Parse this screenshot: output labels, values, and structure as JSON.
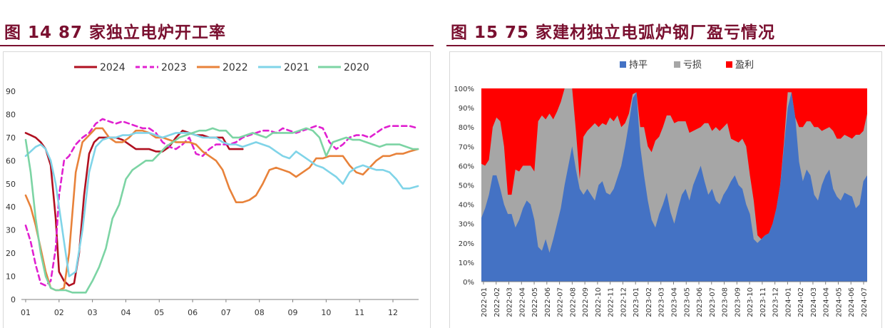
{
  "left": {
    "title": "图 14  87 家独立电炉开工率",
    "chart_data": {
      "type": "line",
      "title": "图 14  87 家独立电炉开工率",
      "x_ticks": [
        "01",
        "02",
        "03",
        "04",
        "05",
        "06",
        "07",
        "08",
        "09",
        "10",
        "11",
        "12"
      ],
      "ylim": [
        0,
        90
      ],
      "y_ticks": [
        "0",
        "10",
        "20",
        "30",
        "40",
        "50",
        "60",
        "70",
        "80",
        "90"
      ],
      "grid": false,
      "legend_position": "top",
      "series": [
        {
          "name": "2024",
          "color": "#b01020",
          "dash": false,
          "x": [
            1.0,
            1.15,
            1.3,
            1.45,
            1.6,
            1.75,
            1.9,
            2.0,
            2.15,
            2.3,
            2.45,
            2.6,
            2.75,
            2.9,
            3.05,
            3.2,
            3.35,
            3.5,
            3.7,
            3.9,
            4.1,
            4.3,
            4.5,
            4.7,
            4.9,
            5.1,
            5.3,
            5.5,
            5.7,
            5.9,
            6.1,
            6.3,
            6.5,
            6.7,
            6.9,
            7.1,
            7.3,
            7.5
          ],
          "y": [
            72,
            71,
            70,
            68,
            65,
            58,
            35,
            12,
            8,
            6,
            7,
            20,
            45,
            63,
            68,
            70,
            70,
            70,
            70,
            69,
            67,
            65,
            65,
            65,
            64,
            64,
            66,
            70,
            73,
            72,
            71,
            71,
            70,
            70,
            70,
            65,
            65,
            65
          ]
        },
        {
          "name": "2023",
          "color": "#e020d0",
          "dash": true,
          "x": [
            1.0,
            1.15,
            1.3,
            1.45,
            1.6,
            1.75,
            1.9,
            2.0,
            2.15,
            2.3,
            2.5,
            2.7,
            2.9,
            3.1,
            3.3,
            3.5,
            3.7,
            3.9,
            4.1,
            4.3,
            4.5,
            4.7,
            4.9,
            5.1,
            5.3,
            5.5,
            5.7,
            5.9,
            6.1,
            6.3,
            6.5,
            6.7,
            6.9,
            7.1,
            7.3,
            7.5,
            7.7,
            7.9,
            8.1,
            8.3,
            8.5,
            8.7,
            8.9,
            9.1,
            9.3,
            9.5,
            9.7,
            9.9,
            10.1,
            10.3,
            10.5,
            10.7,
            10.9,
            11.1,
            11.3,
            11.5,
            11.7,
            11.9,
            12.1,
            12.3,
            12.5,
            12.75
          ],
          "y": [
            32,
            25,
            15,
            7,
            6,
            8,
            22,
            45,
            60,
            62,
            67,
            70,
            72,
            76,
            78,
            77,
            76,
            77,
            76,
            75,
            74,
            74,
            72,
            68,
            66,
            65,
            67,
            70,
            63,
            62,
            65,
            67,
            67,
            67,
            68,
            70,
            71,
            72,
            73,
            73,
            72,
            74,
            73,
            72,
            73,
            74,
            75,
            74,
            68,
            65,
            67,
            70,
            71,
            71,
            70,
            72,
            74,
            75,
            75,
            75,
            75,
            74
          ]
        },
        {
          "name": "2022",
          "color": "#e8823a",
          "dash": false,
          "x": [
            1.0,
            1.15,
            1.3,
            1.45,
            1.6,
            1.75,
            1.9,
            2.0,
            2.15,
            2.3,
            2.5,
            2.7,
            2.9,
            3.1,
            3.3,
            3.5,
            3.7,
            3.9,
            4.1,
            4.3,
            4.5,
            4.7,
            4.9,
            5.1,
            5.3,
            5.5,
            5.7,
            5.9,
            6.1,
            6.3,
            6.5,
            6.7,
            6.9,
            7.1,
            7.3,
            7.5,
            7.7,
            7.9,
            8.1,
            8.3,
            8.5,
            8.7,
            8.9,
            9.1,
            9.3,
            9.5,
            9.7,
            9.9,
            10.1,
            10.3,
            10.5,
            10.7,
            10.9,
            11.1,
            11.3,
            11.5,
            11.7,
            11.9,
            12.1,
            12.3,
            12.5,
            12.75
          ],
          "y": [
            45,
            40,
            32,
            22,
            12,
            5,
            4,
            4,
            5,
            20,
            55,
            68,
            71,
            74,
            74,
            70,
            68,
            68,
            70,
            73,
            73,
            72,
            70,
            70,
            69,
            68,
            68,
            68,
            67,
            64,
            62,
            60,
            56,
            48,
            42,
            42,
            43,
            45,
            50,
            56,
            57,
            56,
            55,
            53,
            55,
            57,
            61,
            61,
            62,
            62,
            62,
            58,
            55,
            54,
            57,
            60,
            62,
            62,
            63,
            63,
            64,
            65
          ]
        },
        {
          "name": "2021",
          "color": "#80d4e8",
          "dash": false,
          "x": [
            1.0,
            1.15,
            1.3,
            1.45,
            1.6,
            1.75,
            1.9,
            2.0,
            2.15,
            2.3,
            2.5,
            2.7,
            2.9,
            3.1,
            3.3,
            3.5,
            3.7,
            3.9,
            4.1,
            4.3,
            4.5,
            4.7,
            4.9,
            5.1,
            5.3,
            5.5,
            5.7,
            5.9,
            6.1,
            6.3,
            6.5,
            6.7,
            6.9,
            7.1,
            7.3,
            7.5,
            7.7,
            7.9,
            8.1,
            8.3,
            8.5,
            8.7,
            8.9,
            9.1,
            9.3,
            9.5,
            9.7,
            9.9,
            10.1,
            10.3,
            10.5,
            10.7,
            10.9,
            11.1,
            11.3,
            11.5,
            11.7,
            11.9,
            12.1,
            12.3,
            12.5,
            12.75
          ],
          "y": [
            62,
            64,
            66,
            67,
            65,
            60,
            50,
            40,
            25,
            10,
            12,
            30,
            55,
            66,
            69,
            70,
            70,
            71,
            71,
            72,
            72,
            72,
            71,
            70,
            71,
            72,
            72,
            72,
            71,
            70,
            70,
            70,
            68,
            67,
            67,
            66,
            67,
            68,
            67,
            66,
            64,
            62,
            61,
            64,
            62,
            60,
            58,
            57,
            55,
            53,
            50,
            55,
            57,
            58,
            57,
            56,
            56,
            55,
            52,
            48,
            48,
            49
          ]
        },
        {
          "name": "2020",
          "color": "#7cd4a4",
          "dash": false,
          "x": [
            1.0,
            1.15,
            1.3,
            1.45,
            1.6,
            1.75,
            1.9,
            2.0,
            2.2,
            2.4,
            2.6,
            2.8,
            3.0,
            3.2,
            3.4,
            3.6,
            3.8,
            4.0,
            4.2,
            4.4,
            4.6,
            4.8,
            5.0,
            5.2,
            5.4,
            5.6,
            5.8,
            6.0,
            6.2,
            6.4,
            6.6,
            6.8,
            7.0,
            7.2,
            7.4,
            7.6,
            7.8,
            8.0,
            8.2,
            8.4,
            8.6,
            8.8,
            9.0,
            9.2,
            9.4,
            9.6,
            9.8,
            10.0,
            10.2,
            10.4,
            10.6,
            10.8,
            11.0,
            11.2,
            11.4,
            11.6,
            11.8,
            12.0,
            12.2,
            12.4,
            12.6,
            12.75
          ],
          "y": [
            69,
            55,
            35,
            20,
            10,
            5,
            4,
            4,
            4,
            3,
            3,
            3,
            8,
            14,
            22,
            35,
            41,
            52,
            56,
            58,
            60,
            60,
            63,
            66,
            68,
            70,
            71,
            72,
            73,
            73,
            74,
            73,
            73,
            70,
            70,
            71,
            72,
            71,
            70,
            72,
            72,
            72,
            72,
            73,
            74,
            73,
            70,
            62,
            68,
            69,
            70,
            69,
            69,
            68,
            67,
            66,
            67,
            67,
            67,
            66,
            65,
            65
          ]
        }
      ]
    }
  },
  "right": {
    "title": "图 15  75 家建材独立电弧炉钢厂盈亏情况",
    "chart_data": {
      "type": "area",
      "title": "图 15  75 家建材独立电弧炉钢厂盈亏情况",
      "stacked": true,
      "ylim": [
        0,
        100
      ],
      "y_ticks": [
        "0%",
        "10%",
        "20%",
        "30%",
        "40%",
        "50%",
        "60%",
        "70%",
        "80%",
        "90%",
        "100%"
      ],
      "x_ticks": [
        "2022-01",
        "2022-02",
        "2022-03",
        "2022-04",
        "2022-05",
        "2022-06",
        "2022-07",
        "2022-08",
        "2022-09",
        "2022-10",
        "2022-11",
        "2022-12",
        "2023-01",
        "2023-02",
        "2023-03",
        "2023-04",
        "2023-05",
        "2023-06",
        "2023-07",
        "2023-08",
        "2023-09",
        "2023-10",
        "2023-11",
        "2023-12",
        "2024-01",
        "2024-02",
        "2024-03",
        "2024-04",
        "2024-05",
        "2024-06",
        "2024-07"
      ],
      "grid": false,
      "legend_position": "top",
      "series": [
        {
          "name": "持平",
          "color": "#4472c4",
          "values": [
            33,
            38,
            45,
            55,
            55,
            48,
            40,
            35,
            35,
            28,
            32,
            38,
            42,
            40,
            32,
            18,
            16,
            22,
            15,
            22,
            30,
            38,
            50,
            60,
            70,
            58,
            48,
            45,
            48,
            45,
            42,
            50,
            52,
            46,
            45,
            48,
            54,
            60,
            70,
            82,
            95,
            98,
            70,
            55,
            42,
            32,
            28,
            35,
            40,
            46,
            36,
            30,
            38,
            45,
            48,
            42,
            50,
            55,
            60,
            52,
            45,
            48,
            42,
            40,
            45,
            48,
            52,
            55,
            50,
            48,
            40,
            35,
            22,
            20,
            22,
            24,
            25,
            30,
            38,
            50,
            70,
            90,
            98,
            85,
            62,
            52,
            58,
            55,
            45,
            42,
            50,
            55,
            58,
            48,
            44,
            42,
            46,
            45,
            44,
            38,
            40,
            52,
            55
          ]
        },
        {
          "name": "亏损",
          "color": "#a6a6a6",
          "values": [
            28,
            22,
            18,
            25,
            30,
            35,
            30,
            10,
            10,
            30,
            25,
            22,
            18,
            20,
            25,
            65,
            70,
            62,
            72,
            62,
            58,
            55,
            50,
            40,
            30,
            20,
            5,
            30,
            30,
            35,
            40,
            30,
            30,
            35,
            40,
            35,
            32,
            20,
            12,
            5,
            2,
            0,
            10,
            25,
            28,
            35,
            45,
            40,
            40,
            40,
            50,
            52,
            45,
            38,
            35,
            35,
            28,
            24,
            20,
            30,
            37,
            30,
            38,
            38,
            35,
            34,
            22,
            18,
            22,
            26,
            30,
            20,
            20,
            4,
            0,
            0,
            0,
            0,
            0,
            0,
            2,
            8,
            0,
            0,
            18,
            28,
            25,
            28,
            35,
            38,
            28,
            24,
            22,
            30,
            30,
            32,
            30,
            30,
            30,
            38,
            36,
            26,
            32
          ]
        },
        {
          "name": "盈利",
          "color": "#ff0000"
        }
      ]
    }
  }
}
